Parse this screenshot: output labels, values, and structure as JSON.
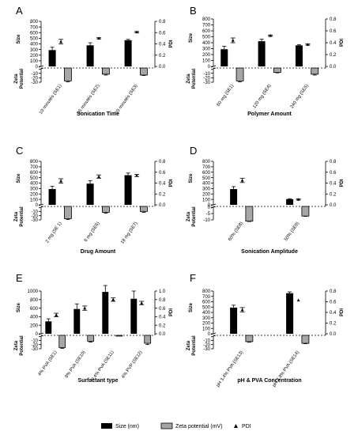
{
  "chart_data": [
    {
      "type": "bar",
      "panel_label": "A",
      "title": "",
      "xlabel": "Sonication Time",
      "categories": [
        "10 minutes (SE1)",
        "15 minutes (SE2)",
        "20 minutes (SE3)"
      ],
      "y_left_size": {
        "label": "Size",
        "ticks": [
          0,
          100,
          200,
          300,
          400,
          500,
          600,
          700,
          800
        ],
        "ylim": [
          0,
          800
        ]
      },
      "y_left_zeta": {
        "label": "Zeta Potential",
        "ticks": [
          -10,
          -20,
          -30
        ],
        "ylim": [
          0,
          -30
        ]
      },
      "y_right": {
        "label": "PDI",
        "ticks": [
          0.0,
          0.2,
          0.4,
          0.6,
          0.8
        ],
        "ylim": [
          0,
          0.8
        ]
      },
      "series": [
        {
          "name": "Size (nm)",
          "values": [
            290,
            375,
            465
          ],
          "errors": [
            50,
            45,
            15
          ]
        },
        {
          "name": "Zeta potential (mV)",
          "values": [
            -27,
            -12,
            -14
          ],
          "errors": [
            2,
            2,
            1
          ]
        },
        {
          "name": "PDI",
          "values": [
            0.44,
            0.5,
            0.61
          ],
          "errors": [
            0.04,
            0.01,
            0.01
          ]
        }
      ]
    },
    {
      "type": "bar",
      "panel_label": "B",
      "title": "",
      "xlabel": "Polymer Amount",
      "categories": [
        "60 mg (SE1)",
        "120 mg (SE4)",
        "240 mg (SE5)"
      ],
      "y_left_size": {
        "label": "Size",
        "ticks": [
          0,
          100,
          200,
          300,
          400,
          500,
          600,
          700,
          800
        ],
        "ylim": [
          0,
          800
        ]
      },
      "y_left_zeta": {
        "label": "Zeta Potential",
        "ticks": [
          -10,
          -20,
          -30
        ],
        "ylim": [
          0,
          -30
        ]
      },
      "y_right": {
        "label": "PDI",
        "ticks": [
          0.0,
          0.2,
          0.4,
          0.6,
          0.8
        ],
        "ylim": [
          0,
          0.8
        ]
      },
      "series": [
        {
          "name": "Size (nm)",
          "values": [
            290,
            425,
            355
          ],
          "errors": [
            50,
            35,
            10
          ]
        },
        {
          "name": "Zeta potential (mV)",
          "values": [
            -27,
            -8,
            -12
          ],
          "errors": [
            2,
            1,
            2
          ]
        },
        {
          "name": "PDI",
          "values": [
            0.44,
            0.52,
            0.37
          ],
          "errors": [
            0.04,
            0.01,
            0.01
          ]
        }
      ]
    },
    {
      "type": "bar",
      "panel_label": "C",
      "title": "",
      "xlabel": "Drug Amount",
      "categories": [
        "2 mg (SE 1)",
        "6 mg (SE6)",
        "18 mg (SE7)"
      ],
      "y_left_size": {
        "label": "Size",
        "ticks": [
          0,
          100,
          200,
          300,
          400,
          500,
          600,
          700,
          800
        ],
        "ylim": [
          0,
          800
        ]
      },
      "y_left_zeta": {
        "label": "Zeta Potential",
        "ticks": [
          -10,
          -20,
          -30
        ],
        "ylim": [
          0,
          -30
        ]
      },
      "y_right": {
        "label": "PDI",
        "ticks": [
          0.0,
          0.2,
          0.4,
          0.6,
          0.8
        ],
        "ylim": [
          0,
          0.8
        ]
      },
      "series": [
        {
          "name": "Size (nm)",
          "values": [
            290,
            390,
            545
          ],
          "errors": [
            50,
            55,
            40
          ]
        },
        {
          "name": "Zeta potential (mV)",
          "values": [
            -27,
            -12,
            -10
          ],
          "errors": [
            2,
            2,
            2
          ]
        },
        {
          "name": "PDI",
          "values": [
            0.44,
            0.52,
            0.54
          ],
          "errors": [
            0.04,
            0.03,
            0.02
          ]
        }
      ]
    },
    {
      "type": "bar",
      "panel_label": "D",
      "title": "",
      "xlabel": "Sonication Amplitude",
      "categories": [
        "60% (SE8)",
        "50% (SE9)"
      ],
      "y_left_size": {
        "label": "Size",
        "ticks": [
          0,
          100,
          200,
          300,
          400,
          500,
          600,
          700,
          800
        ],
        "ylim": [
          0,
          800
        ]
      },
      "y_left_zeta": {
        "label": "Zeta Potential",
        "ticks": [
          0,
          -5,
          -10
        ],
        "ylim": [
          0,
          -10
        ]
      },
      "y_right": {
        "label": "PDI",
        "ticks": [
          0.0,
          0.2,
          0.4,
          0.6,
          0.8
        ],
        "ylim": [
          0,
          0.8
        ]
      },
      "series": [
        {
          "name": "Size (nm)",
          "values": [
            290,
            105
          ],
          "errors": [
            45,
            8
          ]
        },
        {
          "name": "Zeta potential (mV)",
          "values": [
            -11,
            -7
          ],
          "errors": [
            0.3,
            0.2
          ]
        },
        {
          "name": "PDI",
          "values": [
            0.45,
            0.1
          ],
          "errors": [
            0.04,
            0.01
          ]
        }
      ]
    },
    {
      "type": "bar",
      "panel_label": "E",
      "title": "",
      "xlabel": "Surfactant type",
      "categories": [
        "4% PVA (SE1)",
        "8% PVA (SE10)",
        "0.4% PVA (SE11)",
        "4% PVP (SE12)"
      ],
      "y_left_size": {
        "label": "Size",
        "ticks": [
          0,
          200,
          400,
          600,
          800,
          1000
        ],
        "ylim": [
          0,
          1000
        ]
      },
      "y_left_zeta": {
        "label": "Zeta Potential",
        "ticks": [
          -10,
          -20,
          -30
        ],
        "ylim": [
          0,
          -30
        ]
      },
      "y_right": {
        "label": "PDI",
        "ticks": [
          0.0,
          0.2,
          0.4,
          0.6,
          0.8,
          1.0
        ],
        "ylim": [
          0,
          1.0
        ]
      },
      "series": [
        {
          "name": "Size (nm)",
          "values": [
            290,
            580,
            980,
            820
          ],
          "errors": [
            60,
            120,
            150,
            180
          ]
        },
        {
          "name": "Zeta potential (mV)",
          "values": [
            -27,
            -12,
            0,
            -17
          ],
          "errors": [
            2,
            2,
            0.3,
            3
          ]
        },
        {
          "name": "PDI",
          "values": [
            0.44,
            0.6,
            0.8,
            0.72
          ],
          "errors": [
            0.04,
            0.05,
            0.04,
            0.04
          ]
        }
      ]
    },
    {
      "type": "bar",
      "panel_label": "F",
      "title": "",
      "xlabel": "pH & PVA Concentration",
      "categories": [
        "pH 3.4% PVA (SE13)",
        "pH 3.8% PVA (SE14)"
      ],
      "y_left_size": {
        "label": "Size",
        "ticks": [
          0,
          100,
          200,
          300,
          400,
          500,
          600,
          700,
          800
        ],
        "ylim": [
          0,
          800
        ]
      },
      "y_left_zeta": {
        "label": "Zeta Potential",
        "ticks": [
          -10,
          -20,
          -30
        ],
        "ylim": [
          0,
          -30
        ]
      },
      "y_right": {
        "label": "PDI",
        "ticks": [
          0.0,
          0.2,
          0.4,
          0.6,
          0.8
        ],
        "ylim": [
          0,
          0.8
        ]
      },
      "series": [
        {
          "name": "Size (nm)",
          "values": [
            490,
            760
          ],
          "errors": [
            45,
            25
          ]
        },
        {
          "name": "Zeta potential (mV)",
          "values": [
            -13,
            -17
          ],
          "errors": [
            1.5,
            1
          ]
        },
        {
          "name": "PDI",
          "values": [
            0.45,
            0.63
          ],
          "errors": [
            0.04,
            0.0
          ]
        }
      ]
    }
  ],
  "legend": {
    "placement": "bottom",
    "entries": [
      "Size (nm)",
      "Zeta potential (mV)",
      "PDI"
    ]
  },
  "colors": {
    "size": "#000000",
    "zeta": "#a6a6a6",
    "pdi": "#000000"
  }
}
